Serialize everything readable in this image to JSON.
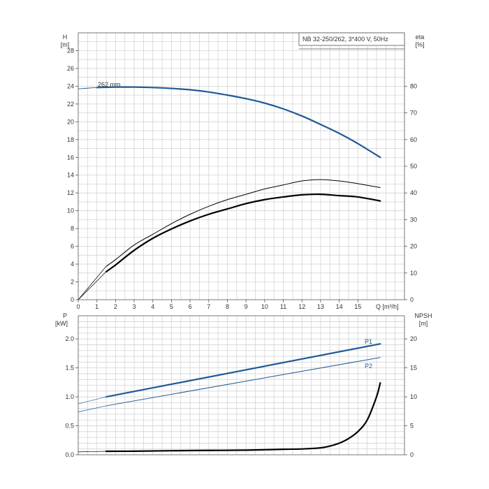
{
  "header_box": {
    "label": "NB 32-250/262, 3*400 V, 50Hz"
  },
  "top_chart": {
    "left_axis": {
      "name": "H",
      "unit": "[m]",
      "ticks": [
        "0",
        "2",
        "4",
        "6",
        "8",
        "10",
        "12",
        "14",
        "16",
        "18",
        "20",
        "22",
        "24",
        "26",
        "28"
      ]
    },
    "right_axis": {
      "name": "eta",
      "unit": "[%]",
      "ticks": [
        "0",
        "10",
        "20",
        "30",
        "40",
        "50",
        "60",
        "70",
        "80"
      ]
    },
    "x_axis": {
      "ticks": [
        "0",
        "1",
        "2",
        "3",
        "4",
        "5",
        "6",
        "7",
        "8",
        "9",
        "10",
        "11",
        "12",
        "13",
        "14",
        "15"
      ],
      "label": "Q [m³/h]"
    },
    "curve_label": "262 mm"
  },
  "bottom_chart": {
    "left_axis": {
      "name": "P",
      "unit": "[kW]",
      "ticks": [
        "0.0",
        "0.5",
        "1.0",
        "1.5",
        "2.0"
      ]
    },
    "right_axis": {
      "name": "NPSH",
      "unit": "[m]",
      "ticks": [
        "0",
        "5",
        "10",
        "15",
        "20"
      ]
    },
    "series_labels": {
      "p1": "P1",
      "p2": "P2"
    }
  },
  "colors": {
    "blue": "#1f5a96",
    "black": "#000000",
    "grid": "#d4d4d4"
  },
  "chart_data": [
    {
      "type": "line",
      "xlabel": "Q [m³/h]",
      "ylabel": "H [m]",
      "y2label": "eta [%]",
      "xlim": [
        0,
        17.5
      ],
      "ylim": [
        0,
        30
      ],
      "y2lim": [
        0,
        100
      ],
      "series": [
        {
          "name": "262 mm",
          "axis": "H",
          "color": "#1f5a96",
          "x": [
            0,
            1,
            2,
            3,
            4,
            5,
            6,
            7,
            8,
            9,
            10,
            11,
            12,
            13,
            14,
            15,
            16.2
          ],
          "y": [
            23.7,
            23.85,
            23.9,
            23.9,
            23.85,
            23.75,
            23.6,
            23.35,
            23.0,
            22.6,
            22.1,
            21.45,
            20.65,
            19.7,
            18.7,
            17.55,
            16.0
          ]
        },
        {
          "axis": "eta",
          "color": "#000000",
          "style": "thin",
          "x": [
            0,
            1.5,
            2,
            3,
            4,
            5,
            6,
            7,
            8,
            9,
            10,
            11,
            12,
            13,
            14,
            15,
            16.2
          ],
          "y": [
            0,
            12.5,
            15,
            20.5,
            24.5,
            28.5,
            32,
            35,
            37.5,
            39.5,
            41.5,
            43,
            44.5,
            45,
            44.5,
            43.5,
            42
          ]
        },
        {
          "axis": "eta",
          "color": "#000000",
          "style": "bold",
          "x": [
            0,
            1.5,
            2,
            3,
            4,
            5,
            6,
            7,
            8,
            9,
            10,
            11,
            12,
            13,
            14,
            15,
            16.2
          ],
          "y": [
            0,
            10.5,
            13,
            18.5,
            23,
            26.5,
            29.5,
            32,
            34,
            36,
            37.5,
            38.5,
            39.3,
            39.5,
            39,
            38.5,
            37
          ]
        }
      ]
    },
    {
      "type": "line",
      "ylabel": "P [kW]",
      "y2label": "NPSH [m]",
      "xlim": [
        0,
        17.5
      ],
      "ylim": [
        0,
        2.4
      ],
      "y2lim": [
        0,
        24
      ],
      "series": [
        {
          "name": "P1",
          "axis": "P",
          "color": "#1f5a96",
          "style": "bold",
          "x": [
            1.5,
            16.2
          ],
          "y": [
            1.0,
            1.915
          ],
          "ext_x": [
            0,
            1.5
          ],
          "ext_y": [
            0.88,
            1.0
          ]
        },
        {
          "name": "P2",
          "axis": "P",
          "color": "#1f5a96",
          "style": "thin",
          "x": [
            1.5,
            16.2
          ],
          "y": [
            0.845,
            1.68
          ],
          "ext_x": [
            0,
            1.5
          ],
          "ext_y": [
            0.74,
            0.845
          ]
        },
        {
          "axis": "NPSH",
          "color": "#000000",
          "style": "bold",
          "x": [
            1.5,
            3,
            5,
            7,
            9,
            11,
            12,
            13,
            13.5,
            14,
            14.5,
            15,
            15.5,
            16,
            16.2
          ],
          "y": [
            0.6,
            0.62,
            0.7,
            0.75,
            0.8,
            0.95,
            1.0,
            1.2,
            1.5,
            2.0,
            2.8,
            4.0,
            6.0,
            10.0,
            12.4
          ],
          "ext_x": [
            0,
            1.5
          ],
          "ext_y": [
            0.5,
            0.6
          ]
        }
      ]
    }
  ]
}
